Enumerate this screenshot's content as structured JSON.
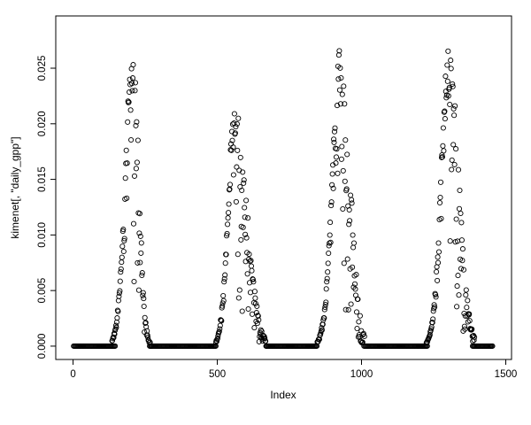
{
  "chart_data": {
    "type": "scatter",
    "title": "",
    "xlabel": "Index",
    "ylabel": "kimenet[, \"daily_gpp\"]",
    "marker": {
      "shape": "open-circle",
      "color": "#000000",
      "radius_px": 2.6,
      "stroke_px": 0.9
    },
    "x_ticks": [
      0,
      500,
      1000,
      1500
    ],
    "x_tick_labels": [
      "0",
      "500",
      "1000",
      "1500"
    ],
    "y_ticks": [
      0,
      0.005,
      0.01,
      0.015,
      0.02,
      0.025
    ],
    "y_tick_labels": [
      "0.000",
      "0.005",
      "0.010",
      "0.015",
      "0.020",
      "0.025"
    ],
    "xlim": [
      -60,
      1520
    ],
    "ylim": [
      -0.0012,
      0.0297
    ],
    "grid": false,
    "legend": "none",
    "description": "Daily GPP index series over ~1460 days: four seasonal bell-shaped peaks separated by long runs of exact zeros.",
    "pattern": {
      "seed": 42,
      "zero_step": 3,
      "season_step": 1.5,
      "drop_before": 0.3,
      "drop_pow_before": 4,
      "drop_pow_after": 2,
      "zero_runs": [
        [
          2,
          146
        ],
        [
          270,
          497
        ],
        [
          675,
          843
        ],
        [
          1012,
          1228
        ],
        [
          1385,
          1455
        ]
      ],
      "seasons": [
        {
          "start": 135,
          "end": 272,
          "peak": 208,
          "amp": 0.0256,
          "sigma_rise": 26,
          "sigma_fall": 20,
          "drop_after": 0.8
        },
        {
          "start": 495,
          "end": 672,
          "peak": 562,
          "amp": 0.0206,
          "sigma_rise": 24,
          "sigma_fall": 40,
          "drop_after": 0.85
        },
        {
          "start": 845,
          "end": 1010,
          "peak": 928,
          "amp": 0.0256,
          "sigma_rise": 28,
          "sigma_fall": 32,
          "drop_after": 0.85
        },
        {
          "start": 1225,
          "end": 1392,
          "peak": 1302,
          "amp": 0.0248,
          "sigma_rise": 26,
          "sigma_fall": 34,
          "drop_after": 0.85
        }
      ]
    }
  }
}
